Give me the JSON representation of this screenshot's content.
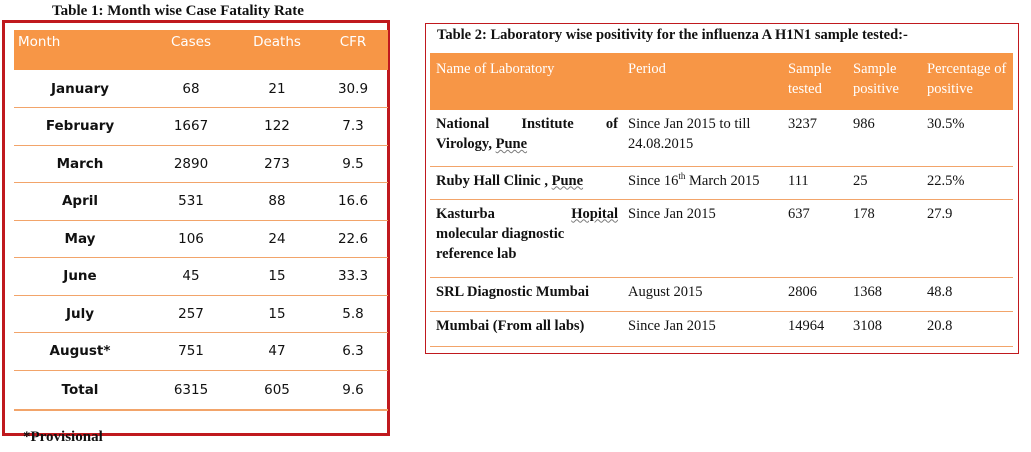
{
  "table1": {
    "title": "Table 1: Month wise Case Fatality Rate",
    "headers": [
      "Month",
      "Cases",
      "Deaths",
      "CFR"
    ],
    "rows": [
      [
        "January",
        "68",
        "21",
        "30.9"
      ],
      [
        "February",
        "1667",
        "122",
        "7.3"
      ],
      [
        "March",
        "2890",
        "273",
        "9.5"
      ],
      [
        "April",
        "531",
        "88",
        "16.6"
      ],
      [
        "May",
        "106",
        "24",
        "22.6"
      ],
      [
        "June",
        "45",
        "15",
        "33.3"
      ],
      [
        "July",
        "257",
        "15",
        "5.8"
      ],
      [
        "August*",
        "751",
        "47",
        "6.3"
      ],
      [
        "Total",
        "6315",
        "605",
        "9.6"
      ]
    ]
  },
  "table2": {
    "title": "Table 2: Laboratory wise positivity for the influenza A H1N1 sample tested:-",
    "headers": [
      "Name of Laboratory",
      "Period",
      "Sample tested",
      "Sample positive",
      "Percentage of positive"
    ],
    "rows": [
      {
        "lab_main": "National Institute of Virology, ",
        "lab_underlined": "Pune",
        "period_main": "Since Jan 2015 to till 24.08.2015",
        "period_sup": "",
        "period_rest": "",
        "tested": "3237",
        "positive": "986",
        "percentage": "30.5%"
      },
      {
        "lab_main": "Ruby Hall Clinic , ",
        "lab_underlined": "Pune",
        "period_main": "Since 16",
        "period_sup": "th",
        "period_rest": " March 2015",
        "tested": "111",
        "positive": "25",
        "percentage": "22.5%"
      },
      {
        "lab_main": "",
        "lab_underlined": "",
        "lab_full": [
          "Kasturba",
          "Hopital",
          "molecular diagnostic reference lab"
        ],
        "period_main": "Since Jan 2015",
        "period_sup": "",
        "period_rest": "",
        "tested": "637",
        "positive": "178",
        "percentage": "27.9"
      },
      {
        "lab_main": "SRL Diagnostic Mumbai",
        "lab_underlined": "",
        "period_main": "August 2015",
        "period_sup": "",
        "period_rest": "",
        "tested": "2806",
        "positive": "1368",
        "percentage": "48.8"
      },
      {
        "lab_main": "Mumbai (From all labs)",
        "lab_underlined": "",
        "period_main": "Since Jan 2015",
        "period_sup": "",
        "period_rest": "",
        "tested": "14964",
        "positive": "3108",
        "percentage": "20.8"
      }
    ]
  },
  "footnote": "*Provisional",
  "colors": {
    "header_fill": "#f79646",
    "frame_border": "#c0191e",
    "row_rule": "#f2a46a"
  }
}
